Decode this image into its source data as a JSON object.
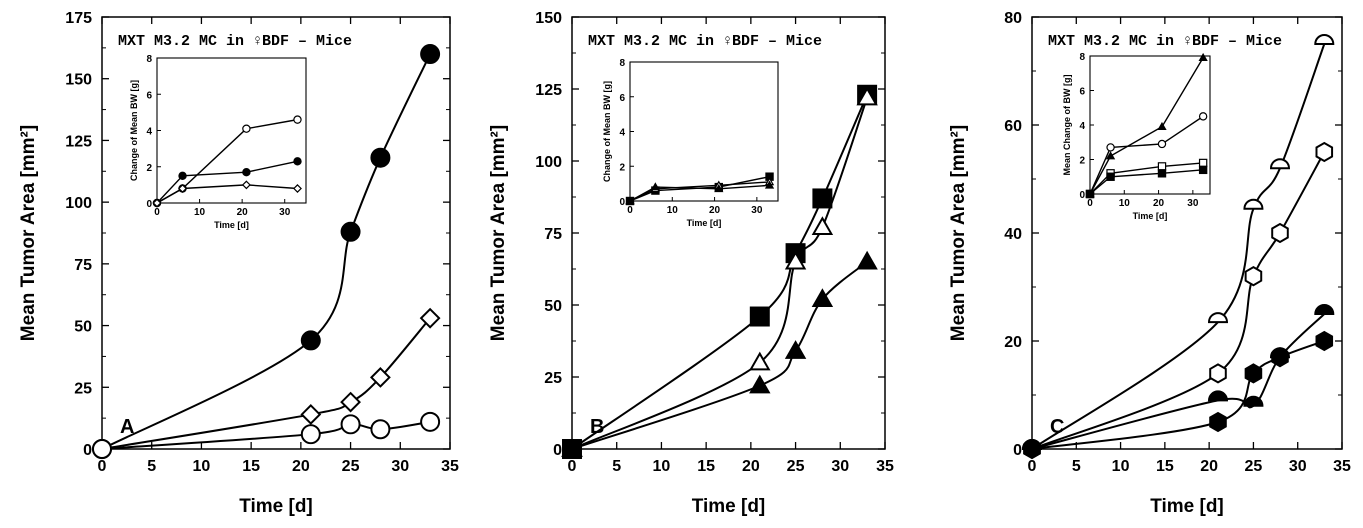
{
  "figure": {
    "panels": [
      {
        "title": "MXT M3.2 MC in ♀BDF – Mice",
        "panel_label": "A",
        "xlabel": "Time [d]",
        "ylabel": "Mean Tumor Area [mm²]",
        "xticks": [
          "0",
          "5",
          "10",
          "15",
          "20",
          "25",
          "30",
          "35"
        ],
        "yticks": [
          "0",
          "25",
          "50",
          "75",
          "100",
          "125",
          "150",
          "175"
        ],
        "inset": {
          "xlabel": "Time [d]",
          "ylabel": "Change of Mean BW [g]",
          "xticks": [
            "0",
            "10",
            "20",
            "30"
          ],
          "yticks": [
            "0",
            "2",
            "4",
            "6",
            "8"
          ]
        }
      },
      {
        "title": "MXT M3.2 MC in ♀BDF – Mice",
        "panel_label": "B",
        "xlabel": "Time [d]",
        "ylabel": "Mean Tumor Area [mm²]",
        "xticks": [
          "0",
          "5",
          "10",
          "15",
          "20",
          "25",
          "30",
          "35"
        ],
        "yticks": [
          "0",
          "25",
          "50",
          "75",
          "100",
          "125",
          "150"
        ],
        "inset": {
          "xlabel": "Time [d]",
          "ylabel": "Change of Mean BW [g]",
          "xticks": [
            "0",
            "10",
            "20",
            "30"
          ],
          "yticks": [
            "0",
            "2",
            "4",
            "6",
            "8"
          ]
        }
      },
      {
        "title": "MXT M3.2 MC in ♀BDF – Mice",
        "panel_label": "C",
        "xlabel": "Time [d]",
        "ylabel": "Mean Tumor Area [mm²]",
        "xticks": [
          "0",
          "5",
          "10",
          "15",
          "20",
          "25",
          "30",
          "35"
        ],
        "yticks": [
          "0",
          "20",
          "40",
          "60",
          "80"
        ],
        "inset": {
          "xlabel": "Time [d]",
          "ylabel": "Mean Change of BW [g]",
          "xticks": [
            "0",
            "10",
            "20",
            "30"
          ],
          "yticks": [
            "0",
            "2",
            "4",
            "6",
            "8"
          ]
        }
      }
    ]
  },
  "chart_data": [
    {
      "type": "line",
      "title": "MXT M3.2 MC in ♀BDF – Mice",
      "panel": "A",
      "xlabel": "Time [d]",
      "ylabel": "Mean Tumor Area [mm²]",
      "xlim": [
        0,
        35
      ],
      "ylim": [
        0,
        175
      ],
      "grid": false,
      "series": [
        {
          "marker": "filled-circle",
          "x": [
            0,
            21,
            25,
            28,
            33
          ],
          "y": [
            0,
            44,
            88,
            118,
            160
          ]
        },
        {
          "marker": "open-diamond",
          "x": [
            0,
            21,
            25,
            28,
            33
          ],
          "y": [
            0,
            14,
            19,
            29,
            53
          ]
        },
        {
          "marker": "open-circle",
          "x": [
            0,
            21,
            25,
            28,
            33
          ],
          "y": [
            0,
            6,
            10,
            8,
            11
          ]
        }
      ],
      "inset": {
        "type": "line",
        "xlabel": "Time [d]",
        "ylabel": "Change of Mean BW [g]",
        "xlim": [
          0,
          35
        ],
        "ylim": [
          0,
          8
        ],
        "series": [
          {
            "marker": "open-circle",
            "x": [
              0,
              6,
              21,
              33
            ],
            "y": [
              0,
              0.8,
              4.1,
              4.6
            ]
          },
          {
            "marker": "filled-circle",
            "x": [
              0,
              6,
              21,
              33
            ],
            "y": [
              0,
              1.5,
              1.7,
              2.3
            ]
          },
          {
            "marker": "open-diamond",
            "x": [
              0,
              6,
              21,
              33
            ],
            "y": [
              0,
              0.8,
              1.0,
              0.8
            ]
          }
        ]
      }
    },
    {
      "type": "line",
      "title": "MXT M3.2 MC in ♀BDF – Mice",
      "panel": "B",
      "xlabel": "Time [d]",
      "ylabel": "Mean Tumor Area [mm²]",
      "xlim": [
        0,
        35
      ],
      "ylim": [
        0,
        150
      ],
      "grid": false,
      "series": [
        {
          "marker": "filled-square",
          "x": [
            0,
            21,
            25,
            28,
            33
          ],
          "y": [
            0,
            46,
            68,
            87,
            123
          ]
        },
        {
          "marker": "open-triangle",
          "x": [
            0,
            21,
            25,
            28,
            33
          ],
          "y": [
            0,
            30,
            65,
            77,
            122
          ]
        },
        {
          "marker": "filled-triangle",
          "x": [
            0,
            21,
            25,
            28,
            33
          ],
          "y": [
            0,
            22,
            34,
            52,
            65
          ]
        }
      ],
      "inset": {
        "type": "line",
        "xlabel": "Time [d]",
        "ylabel": "Change of Mean BW [g]",
        "xlim": [
          0,
          35
        ],
        "ylim": [
          0,
          8
        ],
        "series": [
          {
            "marker": "filled-square",
            "x": [
              0,
              6,
              21,
              33
            ],
            "y": [
              0,
              0.6,
              0.8,
              1.4
            ]
          },
          {
            "marker": "open-triangle",
            "x": [
              0,
              6,
              21,
              33
            ],
            "y": [
              0,
              0.7,
              0.9,
              1.1
            ]
          },
          {
            "marker": "filled-triangle",
            "x": [
              0,
              6,
              21,
              33
            ],
            "y": [
              0,
              0.8,
              0.7,
              0.9
            ]
          }
        ]
      }
    },
    {
      "type": "line",
      "title": "MXT M3.2 MC in ♀BDF – Mice",
      "panel": "C",
      "xlabel": "Time [d]",
      "ylabel": "Mean Tumor Area [mm²]",
      "xlim": [
        0,
        35
      ],
      "ylim": [
        0,
        80
      ],
      "grid": false,
      "series": [
        {
          "marker": "open-half-circle",
          "x": [
            0,
            21,
            25,
            28,
            33
          ],
          "y": [
            0,
            23.5,
            44.5,
            52,
            75
          ]
        },
        {
          "marker": "open-hexagon",
          "x": [
            0,
            21,
            25,
            28,
            33
          ],
          "y": [
            0,
            14,
            32,
            40,
            55
          ]
        },
        {
          "marker": "filled-half-circle",
          "x": [
            0,
            21,
            25,
            28,
            33
          ],
          "y": [
            0,
            9,
            8,
            17,
            25
          ]
        },
        {
          "marker": "filled-hexagon",
          "x": [
            0,
            21,
            25,
            28,
            33
          ],
          "y": [
            0,
            5,
            14,
            17,
            20
          ]
        }
      ],
      "inset": {
        "type": "line",
        "xlabel": "Time [d]",
        "ylabel": "Mean Change of BW [g]",
        "xlim": [
          0,
          35
        ],
        "ylim": [
          0,
          8
        ],
        "series": [
          {
            "marker": "filled-triangle",
            "x": [
              0,
              6,
              21,
              33
            ],
            "y": [
              0,
              2.2,
              3.9,
              7.9
            ]
          },
          {
            "marker": "open-circle",
            "x": [
              0,
              6,
              21,
              33
            ],
            "y": [
              0,
              2.7,
              2.9,
              4.5
            ]
          },
          {
            "marker": "open-square",
            "x": [
              0,
              6,
              21,
              33
            ],
            "y": [
              0,
              1.2,
              1.6,
              1.8
            ]
          },
          {
            "marker": "filled-square",
            "x": [
              0,
              6,
              21,
              33
            ],
            "y": [
              0,
              1.0,
              1.2,
              1.4
            ]
          }
        ]
      }
    }
  ]
}
